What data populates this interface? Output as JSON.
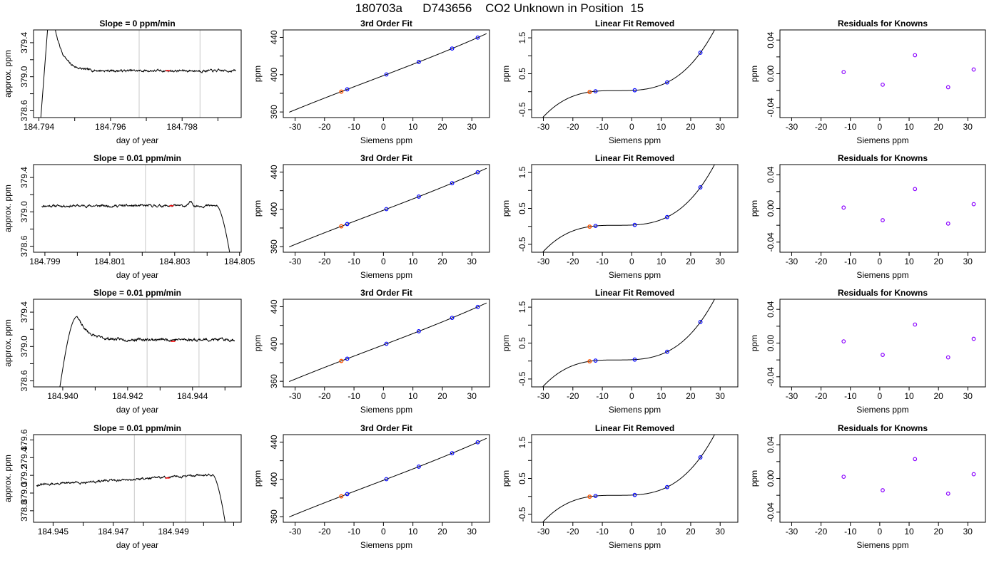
{
  "page_title": "180703a      D743656    CO2 Unknown in Position  15",
  "colors": {
    "line": "#000000",
    "vline": "#c8c8c8",
    "known": "#0000ff",
    "resid": "#8a00ff",
    "unknown": "#ff5500",
    "unknown_marker": "#ff0000"
  },
  "chart_data": [
    {
      "type": "line",
      "title": "Slope =  0  ppm/min",
      "xlabel": "day of year",
      "ylabel": "approx. ppm",
      "xlim": [
        184.79385,
        184.79965
      ],
      "ylim": [
        378.52,
        379.55
      ],
      "xticks": [
        184.794,
        184.795,
        184.796,
        184.797,
        184.798,
        184.799
      ],
      "xtick_labels": [
        "184.794",
        "",
        "184.796",
        "",
        "184.798",
        ""
      ],
      "yticks": [
        378.6,
        378.8,
        379.0,
        379.2,
        379.4
      ],
      "ytick_labels": [
        "378.6",
        "",
        "379.0",
        "",
        "379.4"
      ],
      "vlines": [
        184.7968,
        184.7985
      ],
      "marker": {
        "x": 184.7976,
        "y": 379.07
      },
      "trace": {
        "type": "spike",
        "x0": 184.79405,
        "x1": 184.7995,
        "baseline": 379.07,
        "xpeak": 184.79445,
        "decay": 0.00024,
        "amp": 0.5,
        "xbreak": 184.79425,
        "start": 378.5,
        "top": 379.6,
        "noise": 0.009,
        "seed": 7
      }
    },
    {
      "type": "scatter",
      "title": "3rd Order Fit",
      "xlabel": "Siemens ppm",
      "ylabel": "ppm",
      "xlim": [
        -34,
        36
      ],
      "ylim": [
        354,
        448
      ],
      "xticks": [
        -30,
        -20,
        -10,
        0,
        10,
        20,
        30
      ],
      "yticks": [
        360,
        380,
        400,
        420,
        440
      ],
      "ytick_labels": [
        "360",
        "",
        "400",
        "",
        "440"
      ],
      "curve": {
        "kind": "fit"
      },
      "known_x": [
        -12.3,
        1,
        12,
        23.3,
        32
      ],
      "unknown_x": [
        -14.3
      ]
    },
    {
      "type": "scatter",
      "title": "Linear Fit Removed",
      "xlabel": "Siemens ppm",
      "ylabel": "ppm",
      "xlim": [
        -34,
        36
      ],
      "ylim": [
        -0.72,
        1.72
      ],
      "xticks": [
        -30,
        -20,
        -10,
        0,
        10,
        20,
        30
      ],
      "yticks": [
        -0.5,
        0,
        0.5,
        1,
        1.5
      ],
      "ytick_labels": [
        "-0.5",
        "",
        "0.5",
        "",
        "1.5"
      ],
      "curve": {
        "kind": "cubic"
      },
      "known_x": [
        -12.3,
        1,
        12,
        23.3,
        32
      ],
      "unknown_x": [
        -14.3
      ]
    },
    {
      "type": "scatter",
      "title": "Residuals for Knowns",
      "xlabel": "Siemens ppm",
      "ylabel": "ppm",
      "xlim": [
        -34,
        36
      ],
      "ylim": [
        -0.052,
        0.052
      ],
      "xticks": [
        -30,
        -20,
        -10,
        0,
        10,
        20,
        30
      ],
      "yticks": [
        -0.04,
        -0.02,
        0,
        0.02,
        0.04
      ],
      "ytick_labels": [
        "-0.04",
        "",
        "0.00",
        "",
        "0.04"
      ],
      "points": {
        "x": [
          -12.3,
          1,
          12,
          23.3,
          32
        ],
        "y": [
          0.002,
          -0.013,
          0.022,
          -0.016,
          0.005
        ]
      }
    },
    {
      "type": "line",
      "title": "Slope =  0.01  ppm/min",
      "xlabel": "day of year",
      "ylabel": "approx. ppm",
      "xlim": [
        184.79865,
        184.80505
      ],
      "ylim": [
        378.53,
        379.55
      ],
      "xticks": [
        184.799,
        184.8,
        184.801,
        184.802,
        184.803,
        184.804,
        184.805
      ],
      "xtick_labels": [
        "184.799",
        "",
        "184.801",
        "",
        "184.803",
        "",
        "184.805"
      ],
      "yticks": [
        378.6,
        378.8,
        379.0,
        379.2,
        379.4
      ],
      "ytick_labels": [
        "378.6",
        "",
        "379.0",
        "",
        "379.4"
      ],
      "vlines": [
        184.8021,
        184.8036
      ],
      "marker": {
        "x": 184.8029,
        "y": 379.07
      },
      "trace": {
        "type": "drop",
        "x0": 184.7989,
        "x1": 184.80475,
        "baseline": 379.07,
        "xdrop": 184.8043,
        "end": 378.4,
        "noise": 0.009,
        "seed": 11,
        "bump": {
          "x": 184.8035,
          "h": 0.04
        }
      }
    },
    {
      "type": "scatter",
      "title": "3rd Order Fit",
      "xlabel": "Siemens ppm",
      "ylabel": "ppm",
      "xlim": [
        -34,
        36
      ],
      "ylim": [
        354,
        448
      ],
      "xticks": [
        -30,
        -20,
        -10,
        0,
        10,
        20,
        30
      ],
      "yticks": [
        360,
        380,
        400,
        420,
        440
      ],
      "ytick_labels": [
        "360",
        "",
        "400",
        "",
        "440"
      ],
      "curve": {
        "kind": "fit"
      },
      "known_x": [
        -12.3,
        1,
        12,
        23.3,
        32
      ],
      "unknown_x": [
        -14.3
      ]
    },
    {
      "type": "scatter",
      "title": "Linear Fit Removed",
      "xlabel": "Siemens ppm",
      "ylabel": "ppm",
      "xlim": [
        -34,
        36
      ],
      "ylim": [
        -0.72,
        1.72
      ],
      "xticks": [
        -30,
        -20,
        -10,
        0,
        10,
        20,
        30
      ],
      "yticks": [
        -0.5,
        0,
        0.5,
        1,
        1.5
      ],
      "ytick_labels": [
        "-0.5",
        "",
        "0.5",
        "",
        "1.5"
      ],
      "curve": {
        "kind": "cubic"
      },
      "known_x": [
        -12.3,
        1,
        12,
        23.3,
        32
      ],
      "unknown_x": [
        -14.3
      ]
    },
    {
      "type": "scatter",
      "title": "Residuals for Knowns",
      "xlabel": "Siemens ppm",
      "ylabel": "ppm",
      "xlim": [
        -34,
        36
      ],
      "ylim": [
        -0.052,
        0.052
      ],
      "xticks": [
        -30,
        -20,
        -10,
        0,
        10,
        20,
        30
      ],
      "yticks": [
        -0.04,
        -0.02,
        0,
        0.02,
        0.04
      ],
      "ytick_labels": [
        "-0.04",
        "",
        "0.00",
        "",
        "0.04"
      ],
      "points": {
        "x": [
          -12.3,
          1,
          12,
          23.3,
          32
        ],
        "y": [
          0.001,
          -0.014,
          0.023,
          -0.018,
          0.005
        ]
      }
    },
    {
      "type": "line",
      "title": "Slope =  0.01  ppm/min",
      "xlabel": "day of year",
      "ylabel": "approx. ppm",
      "xlim": [
        184.9391,
        184.9455
      ],
      "ylim": [
        378.53,
        379.55
      ],
      "xticks": [
        184.94,
        184.941,
        184.942,
        184.943,
        184.944,
        184.945
      ],
      "xtick_labels": [
        "184.940",
        "",
        "184.942",
        "",
        "184.944",
        ""
      ],
      "yticks": [
        378.6,
        378.8,
        379.0,
        379.2,
        379.4
      ],
      "ytick_labels": [
        "378.6",
        "",
        "379.0",
        "",
        "379.4"
      ],
      "vlines": [
        184.9426,
        184.9442
      ],
      "marker": {
        "x": 184.9434,
        "y": 379.06
      },
      "trace": {
        "type": "rise",
        "x0": 184.9397,
        "x1": 184.9453,
        "baseline": 379.08,
        "xrise0": 184.9399,
        "xpeak": 184.94045,
        "peak": 379.35,
        "start": 378.5,
        "decay": 0.0003,
        "noise": 0.01,
        "seed": 23
      }
    },
    {
      "type": "scatter",
      "title": "3rd Order Fit",
      "xlabel": "Siemens ppm",
      "ylabel": "ppm",
      "xlim": [
        -34,
        36
      ],
      "ylim": [
        354,
        448
      ],
      "xticks": [
        -30,
        -20,
        -10,
        0,
        10,
        20,
        30
      ],
      "yticks": [
        360,
        380,
        400,
        420,
        440
      ],
      "ytick_labels": [
        "360",
        "",
        "400",
        "",
        "440"
      ],
      "curve": {
        "kind": "fit"
      },
      "known_x": [
        -12.3,
        1,
        12,
        23.3,
        32
      ],
      "unknown_x": [
        -14.3
      ]
    },
    {
      "type": "scatter",
      "title": "Linear Fit Removed",
      "xlabel": "Siemens ppm",
      "ylabel": "ppm",
      "xlim": [
        -34,
        36
      ],
      "ylim": [
        -0.72,
        1.72
      ],
      "xticks": [
        -30,
        -20,
        -10,
        0,
        10,
        20,
        30
      ],
      "yticks": [
        -0.5,
        0,
        0.5,
        1,
        1.5
      ],
      "ytick_labels": [
        "-0.5",
        "",
        "0.5",
        "",
        "1.5"
      ],
      "curve": {
        "kind": "cubic"
      },
      "known_x": [
        -12.3,
        1,
        12,
        23.3,
        32
      ],
      "unknown_x": [
        -14.3
      ]
    },
    {
      "type": "scatter",
      "title": "Residuals for Knowns",
      "xlabel": "Siemens ppm",
      "ylabel": "ppm",
      "xlim": [
        -34,
        36
      ],
      "ylim": [
        -0.052,
        0.052
      ],
      "xticks": [
        -30,
        -20,
        -10,
        0,
        10,
        20,
        30
      ],
      "yticks": [
        -0.04,
        -0.02,
        0,
        0.02,
        0.04
      ],
      "ytick_labels": [
        "-0.04",
        "",
        "0.00",
        "",
        "0.04"
      ],
      "points": {
        "x": [
          -12.3,
          1,
          12,
          23.3,
          32
        ],
        "y": [
          0.002,
          -0.014,
          0.022,
          -0.017,
          0.005
        ]
      }
    },
    {
      "type": "line",
      "title": "Slope =  0.01  ppm/min",
      "xlabel": "day of year",
      "ylabel": "approx. ppm",
      "xlim": [
        184.94435,
        184.95125
      ],
      "ylim": [
        378.67,
        379.66
      ],
      "xticks": [
        184.945,
        184.946,
        184.947,
        184.948,
        184.949,
        184.95,
        184.951
      ],
      "xtick_labels": [
        "184.945",
        "",
        "184.947",
        "",
        "184.949",
        "",
        ""
      ],
      "yticks": [
        378.8,
        379.0,
        379.2,
        379.4,
        379.6
      ],
      "ytick_labels": [
        "378.8",
        "379.0",
        "379.2",
        "379.4",
        "379.6"
      ],
      "vlines": [
        184.9477,
        184.9494
      ],
      "marker": {
        "x": 184.9488,
        "y": 379.17
      },
      "trace": {
        "type": "drop",
        "x0": 184.94445,
        "x1": 184.95075,
        "baseline": 379.15,
        "slope": 20,
        "xdrop": 184.9503,
        "end": 378.6,
        "noise": 0.008,
        "seed": 31
      }
    },
    {
      "type": "scatter",
      "title": "3rd Order Fit",
      "xlabel": "Siemens ppm",
      "ylabel": "ppm",
      "xlim": [
        -34,
        36
      ],
      "ylim": [
        354,
        448
      ],
      "xticks": [
        -30,
        -20,
        -10,
        0,
        10,
        20,
        30
      ],
      "yticks": [
        360,
        380,
        400,
        420,
        440
      ],
      "ytick_labels": [
        "360",
        "",
        "400",
        "",
        "440"
      ],
      "curve": {
        "kind": "fit"
      },
      "known_x": [
        -12.3,
        1,
        12,
        23.3,
        32
      ],
      "unknown_x": [
        -14.3
      ]
    },
    {
      "type": "scatter",
      "title": "Linear Fit Removed",
      "xlabel": "Siemens ppm",
      "ylabel": "ppm",
      "xlim": [
        -34,
        36
      ],
      "ylim": [
        -0.72,
        1.72
      ],
      "xticks": [
        -30,
        -20,
        -10,
        0,
        10,
        20,
        30
      ],
      "yticks": [
        -0.5,
        0,
        0.5,
        1,
        1.5
      ],
      "ytick_labels": [
        "-0.5",
        "",
        "0.5",
        "",
        "1.5"
      ],
      "curve": {
        "kind": "cubic"
      },
      "known_x": [
        -12.3,
        1,
        12,
        23.3,
        32
      ],
      "unknown_x": [
        -14.3
      ]
    },
    {
      "type": "scatter",
      "title": "Residuals for Knowns",
      "xlabel": "Siemens ppm",
      "ylabel": "ppm",
      "xlim": [
        -34,
        36
      ],
      "ylim": [
        -0.052,
        0.052
      ],
      "xticks": [
        -30,
        -20,
        -10,
        0,
        10,
        20,
        30
      ],
      "yticks": [
        -0.04,
        -0.02,
        0,
        0.02,
        0.04
      ],
      "ytick_labels": [
        "-0.04",
        "",
        "0.00",
        "",
        "0.04"
      ],
      "points": {
        "x": [
          -12.3,
          1,
          12,
          23.3,
          32
        ],
        "y": [
          0.002,
          -0.014,
          0.023,
          -0.018,
          0.005
        ]
      }
    }
  ]
}
